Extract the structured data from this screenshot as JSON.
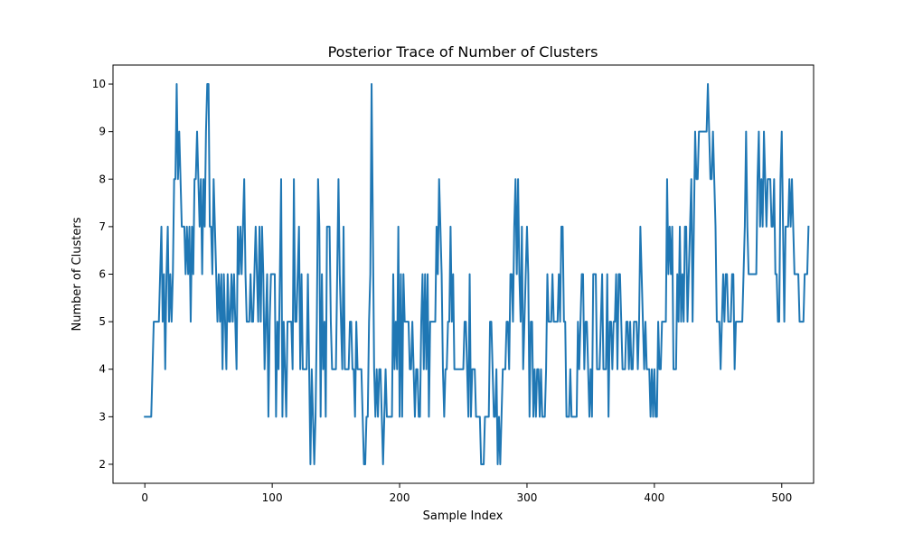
{
  "chart_data": {
    "type": "line",
    "title": "Posterior Trace of Number of Clusters",
    "xlabel": "Sample Index",
    "ylabel": "Number of Clusters",
    "xlim": [
      -25,
      525
    ],
    "ylim": [
      1.6,
      10.4
    ],
    "xticks": [
      0,
      100,
      200,
      300,
      400,
      500
    ],
    "yticks": [
      2,
      3,
      4,
      5,
      6,
      7,
      8,
      9,
      10
    ],
    "grid": false,
    "line_color": "#1f77b4",
    "series": [
      {
        "x_start": 0,
        "values": [
          3,
          3,
          3,
          3,
          3,
          3,
          4,
          5,
          5,
          5,
          5,
          5,
          6,
          7,
          5,
          6,
          4,
          6,
          7,
          5,
          6,
          5,
          6,
          8,
          8,
          10,
          8,
          9,
          8,
          7,
          7,
          7,
          6,
          7,
          6,
          7,
          5,
          7,
          6,
          8,
          8,
          9,
          8,
          7,
          8,
          6,
          8,
          7,
          9,
          10,
          10,
          7,
          7,
          6,
          8,
          7,
          6,
          5,
          6,
          5,
          6,
          4,
          6,
          5,
          4,
          6,
          5,
          5,
          6,
          5,
          6,
          5,
          4,
          7,
          6,
          7,
          6,
          7,
          8,
          6,
          5,
          5,
          5,
          6,
          5,
          5,
          6,
          7,
          6,
          5,
          7,
          5,
          7,
          6,
          4,
          5,
          6,
          3,
          5,
          6,
          6,
          6,
          6,
          3,
          5,
          4,
          6,
          8,
          3,
          5,
          4,
          3,
          5,
          5,
          5,
          5,
          4,
          8,
          5,
          5,
          6,
          7,
          4,
          6,
          4,
          4,
          4,
          4,
          6,
          4,
          2,
          4,
          3,
          2,
          3,
          5,
          8,
          7,
          3,
          6,
          4,
          5,
          3,
          7,
          7,
          7,
          5,
          4,
          4,
          4,
          4,
          6,
          8,
          6,
          5,
          4,
          7,
          4,
          4,
          4,
          4,
          5,
          5,
          4,
          4,
          3,
          5,
          4,
          4,
          4,
          4,
          3,
          2,
          2,
          3,
          3,
          5,
          6,
          10,
          7,
          4,
          3,
          4,
          3,
          4,
          4,
          3,
          2,
          3,
          4,
          3,
          3,
          3,
          3,
          3,
          6,
          4,
          5,
          4,
          7,
          3,
          6,
          3,
          6,
          5,
          5,
          5,
          5,
          4,
          4,
          5,
          4,
          3,
          4,
          4,
          3,
          3,
          5,
          6,
          4,
          6,
          4,
          6,
          3,
          5,
          5,
          5,
          5,
          5,
          7,
          6,
          8,
          7,
          6,
          4,
          3,
          4,
          4,
          5,
          5,
          7,
          5,
          6,
          4,
          4,
          4,
          4,
          4,
          4,
          4,
          4,
          5,
          5,
          4,
          3,
          6,
          3,
          4,
          4,
          4,
          3,
          3,
          3,
          3,
          2,
          2,
          2,
          3,
          3,
          3,
          3,
          5,
          5,
          4,
          3,
          3,
          4,
          2,
          3,
          2,
          3,
          4,
          4,
          4,
          5,
          5,
          4,
          6,
          6,
          5,
          7,
          8,
          6,
          8,
          6,
          5,
          7,
          4,
          5,
          6,
          7,
          6,
          3,
          5,
          5,
          3,
          4,
          3,
          4,
          4,
          3,
          4,
          3,
          3,
          3,
          4,
          6,
          5,
          5,
          5,
          6,
          5,
          5,
          5,
          5,
          6,
          5,
          7,
          7,
          5,
          5,
          3,
          3,
          3,
          4,
          3,
          3,
          3,
          3,
          3,
          5,
          4,
          5,
          6,
          6,
          4,
          5,
          5,
          4,
          3,
          4,
          3,
          6,
          6,
          6,
          4,
          4,
          4,
          5,
          6,
          4,
          4,
          4,
          6,
          3,
          5,
          5,
          4,
          5,
          5,
          6,
          4,
          6,
          6,
          5,
          4,
          4,
          4,
          5,
          5,
          4,
          5,
          4,
          4,
          5,
          5,
          5,
          4,
          5,
          7,
          6,
          5,
          4,
          5,
          4,
          4,
          4,
          3,
          4,
          3,
          4,
          3,
          3,
          5,
          4,
          4,
          5,
          5,
          5,
          5,
          8,
          6,
          7,
          6,
          7,
          4,
          4,
          4,
          6,
          5,
          7,
          5,
          6,
          5,
          7,
          7,
          5,
          6,
          7,
          8,
          5,
          7,
          9,
          8,
          8,
          9,
          9,
          9,
          9,
          9,
          9,
          9,
          10,
          9,
          8,
          8,
          9,
          8,
          7,
          5,
          5,
          5,
          4,
          5,
          6,
          5,
          6,
          6,
          5,
          5,
          5,
          6,
          6,
          4,
          5,
          5,
          5,
          5,
          5,
          5,
          6,
          7,
          9,
          7,
          6,
          6,
          6,
          6,
          6,
          6,
          6,
          8,
          9,
          7,
          8,
          7,
          9,
          8,
          7,
          8,
          8,
          8,
          7,
          7,
          8,
          6,
          6,
          5,
          5,
          8,
          9,
          7,
          5,
          7,
          7,
          7,
          8,
          7,
          8,
          7,
          6,
          6,
          6,
          6,
          5,
          5,
          5,
          5,
          6,
          6,
          6,
          7
        ]
      }
    ]
  }
}
